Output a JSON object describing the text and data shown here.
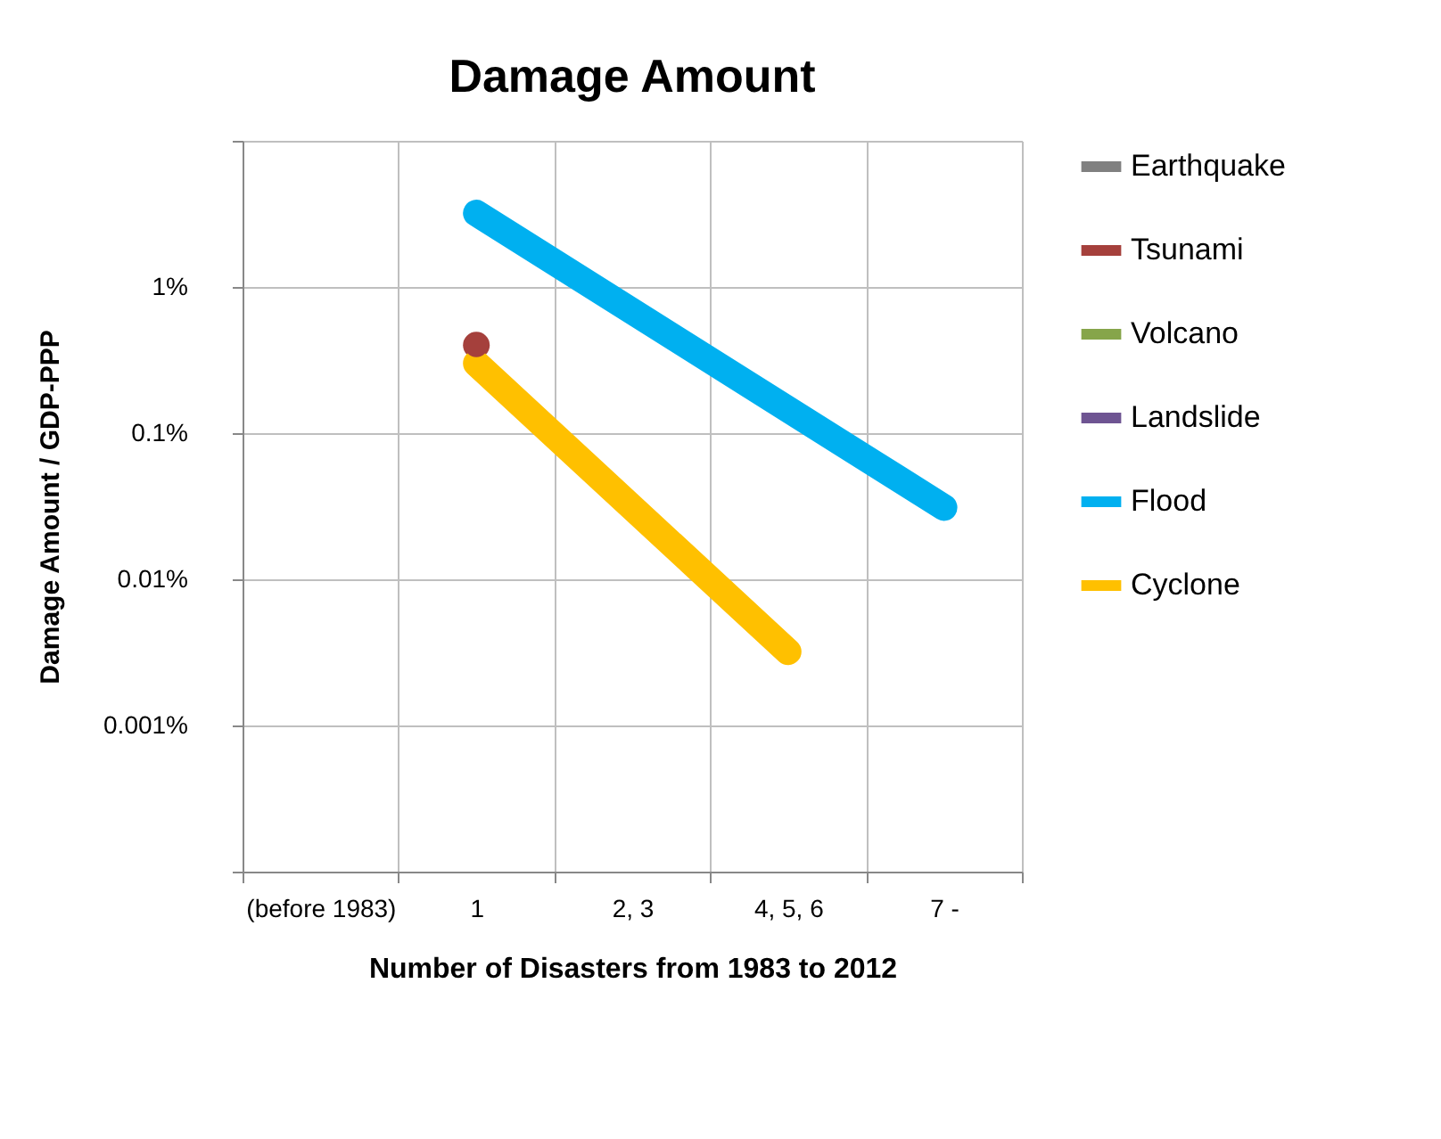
{
  "chart_data": {
    "type": "line",
    "title": "Damage Amount",
    "xlabel": "Number of Disasters from 1983 to 2012",
    "ylabel": "Damage Amount / GDP-PPP",
    "categories": [
      "(before 1983)",
      "1",
      "2, 3",
      "4, 5, 6",
      "7 -"
    ],
    "series": [
      {
        "name": "Earthquake",
        "color": "#808080",
        "values": [
          null,
          null,
          null,
          null,
          null
        ]
      },
      {
        "name": "Tsunami",
        "color": "#a5403c",
        "marker": "circle",
        "values": [
          null,
          0.4,
          null,
          null,
          null
        ]
      },
      {
        "name": "Volcano",
        "color": "#86a54a",
        "values": [
          null,
          null,
          null,
          null,
          null
        ]
      },
      {
        "name": "Landslide",
        "color": "#6e5492",
        "values": [
          null,
          null,
          null,
          null,
          null
        ]
      },
      {
        "name": "Flood",
        "color": "#00b0f0",
        "values": [
          null,
          3.2,
          null,
          null,
          0.031
        ]
      },
      {
        "name": "Cyclone",
        "color": "#ffc000",
        "values": [
          null,
          0.3,
          null,
          0.0032,
          null
        ]
      }
    ],
    "log": "y",
    "ylim": [
      0.0001,
      10
    ],
    "yticks": [
      {
        "value": 10,
        "label": null
      },
      {
        "value": 1,
        "label": "1%"
      },
      {
        "value": 0.1,
        "label": "0.1%"
      },
      {
        "value": 0.01,
        "label": "0.01%"
      },
      {
        "value": 0.001,
        "label": "0.001%"
      },
      {
        "value": 0.0001,
        "label": null
      }
    ],
    "grid": true,
    "legend": "right",
    "line_style": "solid"
  }
}
